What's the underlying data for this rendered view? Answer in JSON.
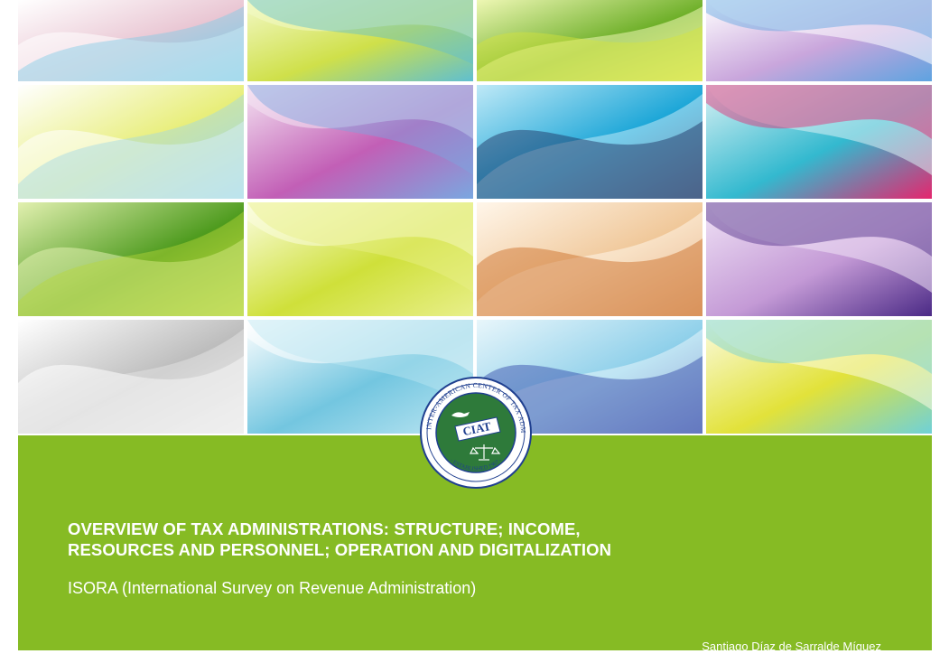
{
  "seal": {
    "ring_text": "INTER-AMERICAN CENTER OF TAX ADMINISTRATIONS",
    "bottom_text": "- ESTABLISHED 1967 -",
    "center_text": "CIAT"
  },
  "document": {
    "title_line1": "OVERVIEW OF TAX ADMINISTRATIONS: STRUCTURE; INCOME,",
    "title_line2": "RESOURCES AND PERSONNEL; OPERATION AND DIGITALIZATION",
    "subtitle": "ISORA (International Survey on Revenue Administration)",
    "author": "Santiago Díaz de Sarralde Míguez"
  },
  "colors": {
    "band_green": "#86bb24",
    "seal_green": "#2e7a3a",
    "seal_blue": "#1f3f8f"
  },
  "mosaic": [
    {
      "name": "tile-pink-blue",
      "c1": "#e9c6d3",
      "c2": "#7ecbe6",
      "c3": "#ffffff"
    },
    {
      "name": "tile-lime-teal",
      "c1": "#cfe04a",
      "c2": "#5fbfd0",
      "c3": "#f3f9c6"
    },
    {
      "name": "tile-green-lime",
      "c1": "#6fb02a",
      "c2": "#d6e43a",
      "c3": "#eef7b4"
    },
    {
      "name": "tile-violet-blue",
      "c1": "#c9a6dc",
      "c2": "#5ea3e0",
      "c3": "#ffffff"
    },
    {
      "name": "tile-yellow-cyan",
      "c1": "#e8ee7a",
      "c2": "#9fd8e6",
      "c3": "#ffffff"
    },
    {
      "name": "tile-magenta-blue",
      "c1": "#c25fb6",
      "c2": "#7aa7e0",
      "c3": "#f4e4f2"
    },
    {
      "name": "tile-cyan-navy",
      "c1": "#1ea7d8",
      "c2": "#1b2a5a",
      "c3": "#bfe9f7"
    },
    {
      "name": "tile-cyan-magenta",
      "c1": "#33b9cf",
      "c2": "#e5266e",
      "c3": "#d9f1f4"
    },
    {
      "name": "tile-green-gradient",
      "c1": "#4e9b1e",
      "c2": "#b9d83a",
      "c3": "#e2f0b0"
    },
    {
      "name": "tile-lime-yellow",
      "c1": "#cfe03a",
      "c2": "#e8ef8a",
      "c3": "#fbfde0"
    },
    {
      "name": "tile-orange-brown",
      "c1": "#f0c89a",
      "c2": "#c9681e",
      "c3": "#fff6ea"
    },
    {
      "name": "tile-purple-indigo",
      "c1": "#c49ad6",
      "c2": "#4b2a86",
      "c3": "#f0e3f6"
    },
    {
      "name": "tile-grey-white",
      "c1": "#bdbdbd",
      "c2": "#e9e9e9",
      "c3": "#ffffff"
    },
    {
      "name": "tile-sky-blue",
      "c1": "#73c6e0",
      "c2": "#bde6f2",
      "c3": "#ffffff"
    },
    {
      "name": "tile-blue-indigo",
      "c1": "#8fd0ea",
      "c2": "#2c43a6",
      "c3": "#e8f6fb"
    },
    {
      "name": "tile-yellow-aqua",
      "c1": "#e2e23a",
      "c2": "#6fd1d8",
      "c3": "#fbfbe0"
    }
  ]
}
